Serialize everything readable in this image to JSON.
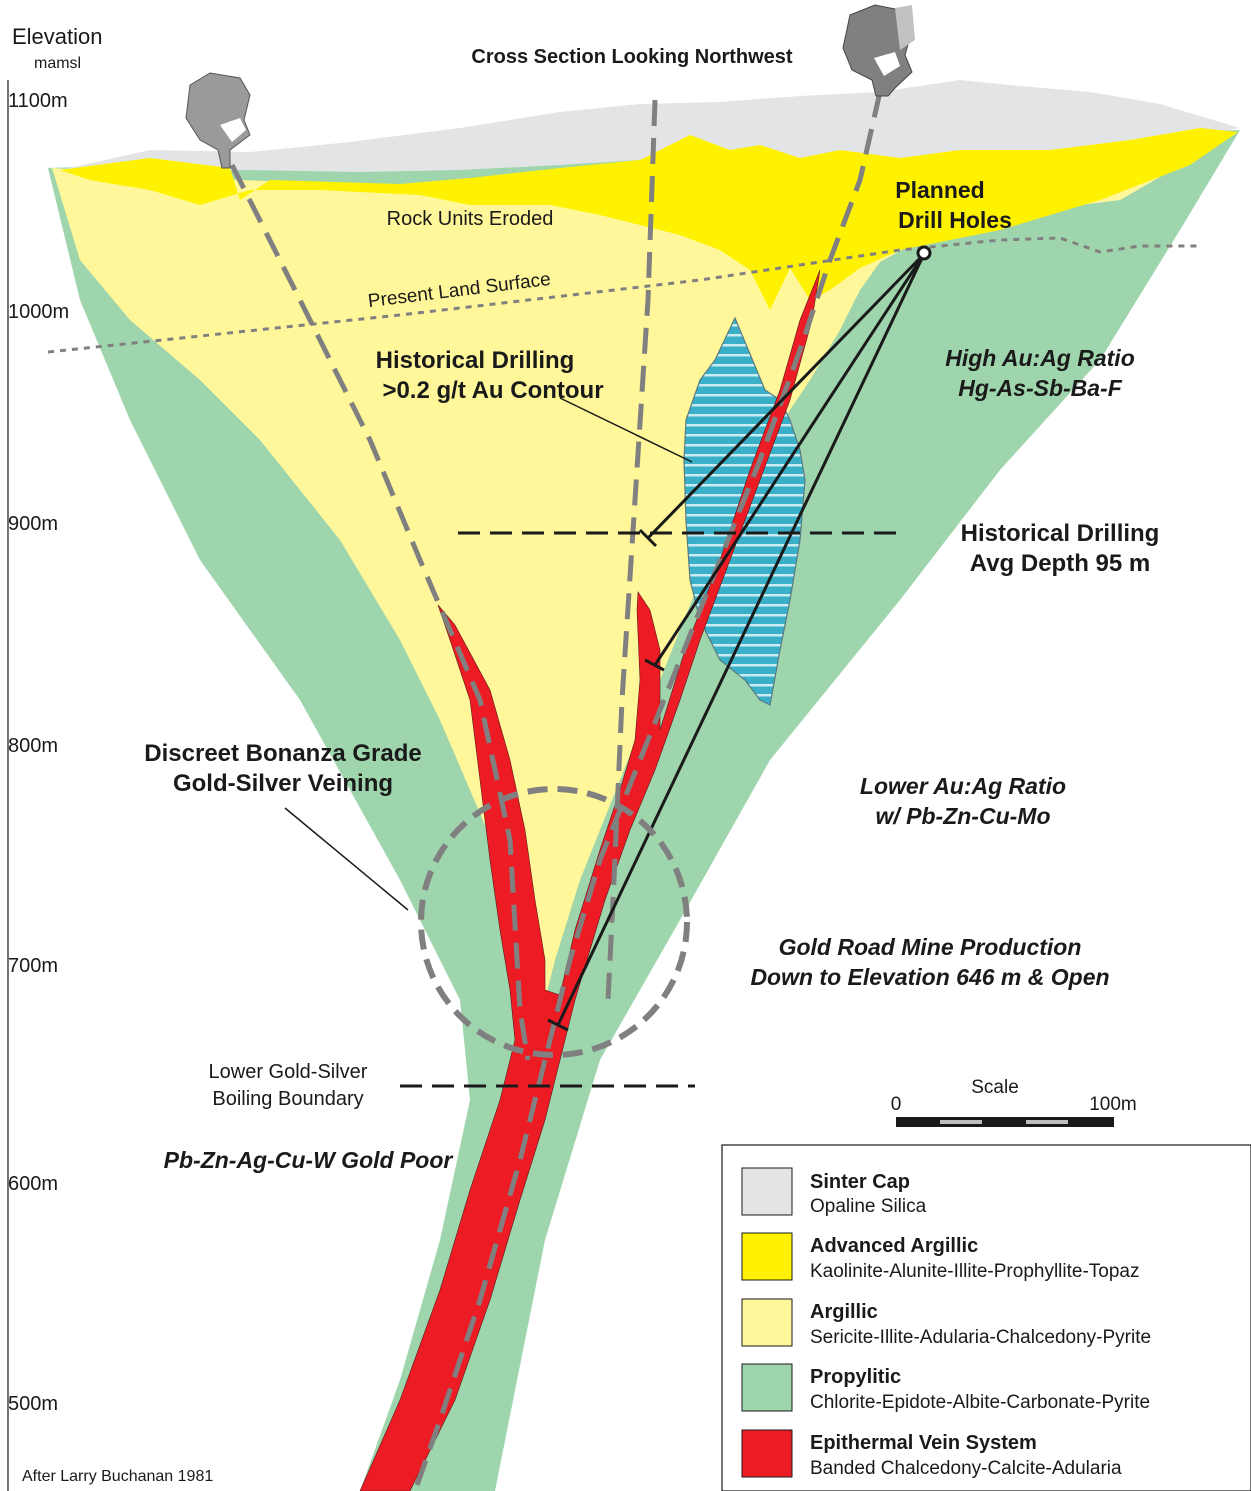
{
  "title": "Cross Section Looking Northwest",
  "axis": {
    "label": "Elevation",
    "unit": "mamsl",
    "ticks": [
      "1100m",
      "1000m",
      "900m",
      "800m",
      "700m",
      "600m",
      "500m"
    ]
  },
  "labels": {
    "rock_units_eroded": "Rock Units Eroded",
    "present_land_surface": "Present Land Surface",
    "planned_drill_holes_1": "Planned",
    "planned_drill_holes_2": "Drill Holes",
    "hist_drilling_1": "Historical Drilling",
    "hist_drilling_2": ">0.2 g/t Au Contour",
    "high_ratio_1": "High  Au:Ag Ratio",
    "high_ratio_2": "Hg-As-Sb-Ba-F",
    "hist_depth_1": "Historical Drilling",
    "hist_depth_2": "Avg Depth 95 m",
    "bonanza_1": "Discreet Bonanza Grade",
    "bonanza_2": "Gold-Silver Veining",
    "lower_ratio_1": "Lower Au:Ag Ratio",
    "lower_ratio_2": "w/ Pb-Zn-Cu-Mo",
    "gold_road_1": "Gold Road Mine Production",
    "gold_road_2": "Down to Elevation 646 m & Open",
    "boiling_1": "Lower Gold-Silver",
    "boiling_2": "Boiling Boundary",
    "gold_poor": "Pb-Zn-Ag-Cu-W Gold Poor",
    "credit": "After Larry Buchanan 1981"
  },
  "scale": {
    "title": "Scale",
    "min": "0",
    "max": "100m"
  },
  "legend": [
    {
      "title": "Sinter Cap",
      "desc": "Opaline Silica",
      "color": "#e3e4e6"
    },
    {
      "title": "Advanced Argillic",
      "desc": "Kaolinite-Alunite-Illite-Prophyllite-Topaz",
      "color": "#fff200"
    },
    {
      "title": "Argillic",
      "desc": "Sericite-Illite-Adularia-Chalcedony-Pyrite",
      "color": "#fff799"
    },
    {
      "title": "Propylitic",
      "desc": "Chlorite-Epidote-Albite-Carbonate-Pyrite",
      "color": "#9fd5ad"
    },
    {
      "title": "Epithermal Vein System",
      "desc": "Banded Chalcedony-Calcite-Adularia",
      "color": "#ed1c24"
    }
  ],
  "colors": {
    "sinter": "#e3e4e6",
    "advanced_argillic": "#fff200",
    "argillic": "#fff799",
    "propylitic": "#9fd5ad",
    "vein": "#ed1c24",
    "historical_contour": "#3ab0c8",
    "drill_trace": "#808080"
  }
}
